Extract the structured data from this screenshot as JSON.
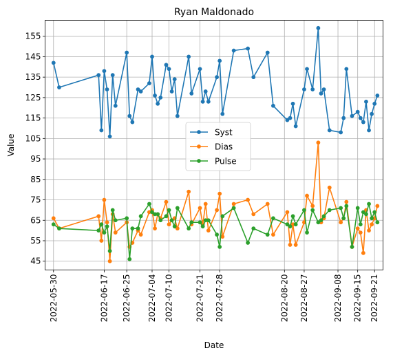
{
  "chart_data": {
    "type": "line",
    "title": "Ryan Maldonado",
    "xlabel": "Date",
    "ylabel": "Value",
    "xlim": [
      "2022-05-27",
      "2022-09-24"
    ],
    "ylim": [
      40.7,
      162.8
    ],
    "grid": true,
    "legend_position": "center",
    "x_ticks": [
      "2022-05-30",
      "2022-06-17",
      "2022-06-25",
      "2022-07-04",
      "2022-07-10",
      "2022-07-21",
      "2022-07-28",
      "2022-08-20",
      "2022-08-27",
      "2022-09-08",
      "2022-09-15",
      "2022-09-21"
    ],
    "y_ticks": [
      45,
      55,
      65,
      75,
      85,
      95,
      105,
      115,
      125,
      135,
      145,
      155
    ],
    "series": [
      {
        "name": "Syst",
        "color": "#1f77b4",
        "points": [
          [
            "2022-05-30",
            142
          ],
          [
            "2022-06-01",
            130
          ],
          [
            "2022-06-15",
            136
          ],
          [
            "2022-06-16",
            109
          ],
          [
            "2022-06-17",
            138
          ],
          [
            "2022-06-18",
            129
          ],
          [
            "2022-06-19",
            106
          ],
          [
            "2022-06-20",
            136
          ],
          [
            "2022-06-21",
            121
          ],
          [
            "2022-06-25",
            147
          ],
          [
            "2022-06-26",
            116
          ],
          [
            "2022-06-27",
            113
          ],
          [
            "2022-06-29",
            129
          ],
          [
            "2022-06-30",
            128
          ],
          [
            "2022-07-03",
            132
          ],
          [
            "2022-07-04",
            145
          ],
          [
            "2022-07-05",
            126
          ],
          [
            "2022-07-06",
            122
          ],
          [
            "2022-07-07",
            125
          ],
          [
            "2022-07-09",
            141
          ],
          [
            "2022-07-10",
            139
          ],
          [
            "2022-07-11",
            128
          ],
          [
            "2022-07-12",
            134
          ],
          [
            "2022-07-13",
            116
          ],
          [
            "2022-07-17",
            145
          ],
          [
            "2022-07-18",
            127
          ],
          [
            "2022-07-21",
            139
          ],
          [
            "2022-07-22",
            123
          ],
          [
            "2022-07-23",
            128
          ],
          [
            "2022-07-24",
            123
          ],
          [
            "2022-07-27",
            135
          ],
          [
            "2022-07-28",
            143
          ],
          [
            "2022-07-29",
            117
          ],
          [
            "2022-08-02",
            148
          ],
          [
            "2022-08-07",
            149
          ],
          [
            "2022-08-09",
            135
          ],
          [
            "2022-08-14",
            147
          ],
          [
            "2022-08-16",
            121
          ],
          [
            "2022-08-21",
            114
          ],
          [
            "2022-08-22",
            115
          ],
          [
            "2022-08-23",
            122
          ],
          [
            "2022-08-24",
            111
          ],
          [
            "2022-08-27",
            129
          ],
          [
            "2022-08-28",
            139
          ],
          [
            "2022-08-30",
            129
          ],
          [
            "2022-09-01",
            159
          ],
          [
            "2022-09-02",
            127
          ],
          [
            "2022-09-03",
            129
          ],
          [
            "2022-09-05",
            109
          ],
          [
            "2022-09-09",
            108
          ],
          [
            "2022-09-10",
            115
          ],
          [
            "2022-09-11",
            139
          ],
          [
            "2022-09-13",
            116
          ],
          [
            "2022-09-15",
            118
          ],
          [
            "2022-09-16",
            115
          ],
          [
            "2022-09-17",
            113
          ],
          [
            "2022-09-18",
            123
          ],
          [
            "2022-09-19",
            109
          ],
          [
            "2022-09-20",
            117
          ],
          [
            "2022-09-21",
            122
          ],
          [
            "2022-09-22",
            126
          ]
        ]
      },
      {
        "name": "Dias",
        "color": "#ff7f0e",
        "points": [
          [
            "2022-05-30",
            66
          ],
          [
            "2022-06-01",
            61
          ],
          [
            "2022-06-15",
            67
          ],
          [
            "2022-06-16",
            55
          ],
          [
            "2022-06-17",
            75
          ],
          [
            "2022-06-18",
            64
          ],
          [
            "2022-06-19",
            45
          ],
          [
            "2022-06-20",
            68
          ],
          [
            "2022-06-21",
            59
          ],
          [
            "2022-06-25",
            64
          ],
          [
            "2022-06-26",
            52
          ],
          [
            "2022-06-27",
            54
          ],
          [
            "2022-06-29",
            60
          ],
          [
            "2022-06-30",
            58
          ],
          [
            "2022-07-03",
            69
          ],
          [
            "2022-07-04",
            70
          ],
          [
            "2022-07-05",
            61
          ],
          [
            "2022-07-06",
            68
          ],
          [
            "2022-07-07",
            66
          ],
          [
            "2022-07-09",
            74
          ],
          [
            "2022-07-10",
            63
          ],
          [
            "2022-07-11",
            65
          ],
          [
            "2022-07-12",
            66
          ],
          [
            "2022-07-13",
            61
          ],
          [
            "2022-07-17",
            79
          ],
          [
            "2022-07-18",
            63
          ],
          [
            "2022-07-21",
            71
          ],
          [
            "2022-07-22",
            63
          ],
          [
            "2022-07-23",
            73
          ],
          [
            "2022-07-24",
            60
          ],
          [
            "2022-07-27",
            70
          ],
          [
            "2022-07-28",
            78
          ],
          [
            "2022-07-29",
            57
          ],
          [
            "2022-08-02",
            73
          ],
          [
            "2022-08-07",
            75
          ],
          [
            "2022-08-09",
            68
          ],
          [
            "2022-08-14",
            73
          ],
          [
            "2022-08-16",
            58
          ],
          [
            "2022-08-21",
            69
          ],
          [
            "2022-08-22",
            53
          ],
          [
            "2022-08-23",
            63
          ],
          [
            "2022-08-24",
            53
          ],
          [
            "2022-08-27",
            64
          ],
          [
            "2022-08-28",
            77
          ],
          [
            "2022-08-30",
            72
          ],
          [
            "2022-09-01",
            103
          ],
          [
            "2022-09-02",
            64
          ],
          [
            "2022-09-03",
            66
          ],
          [
            "2022-09-05",
            81
          ],
          [
            "2022-09-09",
            64
          ],
          [
            "2022-09-10",
            66
          ],
          [
            "2022-09-11",
            74
          ],
          [
            "2022-09-13",
            52
          ],
          [
            "2022-09-15",
            61
          ],
          [
            "2022-09-16",
            59
          ],
          [
            "2022-09-17",
            49
          ],
          [
            "2022-09-18",
            70
          ],
          [
            "2022-09-19",
            60
          ],
          [
            "2022-09-20",
            63
          ],
          [
            "2022-09-21",
            66
          ],
          [
            "2022-09-22",
            72
          ]
        ]
      },
      {
        "name": "Pulse",
        "color": "#2ca02c",
        "points": [
          [
            "2022-05-30",
            63
          ],
          [
            "2022-06-01",
            61
          ],
          [
            "2022-06-15",
            60
          ],
          [
            "2022-06-16",
            63
          ],
          [
            "2022-06-17",
            59
          ],
          [
            "2022-06-18",
            62
          ],
          [
            "2022-06-19",
            50
          ],
          [
            "2022-06-20",
            70
          ],
          [
            "2022-06-21",
            65
          ],
          [
            "2022-06-25",
            66
          ],
          [
            "2022-06-26",
            46
          ],
          [
            "2022-06-27",
            61
          ],
          [
            "2022-06-29",
            61
          ],
          [
            "2022-06-30",
            67
          ],
          [
            "2022-07-03",
            73
          ],
          [
            "2022-07-04",
            69
          ],
          [
            "2022-07-05",
            68
          ],
          [
            "2022-07-06",
            68
          ],
          [
            "2022-07-07",
            65
          ],
          [
            "2022-07-09",
            67
          ],
          [
            "2022-07-10",
            70
          ],
          [
            "2022-07-11",
            65
          ],
          [
            "2022-07-12",
            62
          ],
          [
            "2022-07-13",
            71
          ],
          [
            "2022-07-17",
            61
          ],
          [
            "2022-07-18",
            64
          ],
          [
            "2022-07-21",
            64
          ],
          [
            "2022-07-22",
            62
          ],
          [
            "2022-07-23",
            65
          ],
          [
            "2022-07-24",
            65
          ],
          [
            "2022-07-27",
            58
          ],
          [
            "2022-07-28",
            52
          ],
          [
            "2022-07-29",
            67
          ],
          [
            "2022-08-02",
            71
          ],
          [
            "2022-08-07",
            54
          ],
          [
            "2022-08-09",
            61
          ],
          [
            "2022-08-14",
            58
          ],
          [
            "2022-08-16",
            66
          ],
          [
            "2022-08-21",
            63
          ],
          [
            "2022-08-22",
            62
          ],
          [
            "2022-08-23",
            67
          ],
          [
            "2022-08-24",
            63
          ],
          [
            "2022-08-27",
            70
          ],
          [
            "2022-08-28",
            59
          ],
          [
            "2022-08-30",
            70
          ],
          [
            "2022-09-01",
            64
          ],
          [
            "2022-09-02",
            65
          ],
          [
            "2022-09-03",
            67
          ],
          [
            "2022-09-05",
            70
          ],
          [
            "2022-09-09",
            71
          ],
          [
            "2022-09-10",
            66
          ],
          [
            "2022-09-11",
            72
          ],
          [
            "2022-09-13",
            52
          ],
          [
            "2022-09-15",
            71
          ],
          [
            "2022-09-16",
            63
          ],
          [
            "2022-09-17",
            69
          ],
          [
            "2022-09-18",
            68
          ],
          [
            "2022-09-19",
            73
          ],
          [
            "2022-09-20",
            66
          ],
          [
            "2022-09-21",
            69
          ],
          [
            "2022-09-22",
            64
          ]
        ]
      }
    ]
  }
}
